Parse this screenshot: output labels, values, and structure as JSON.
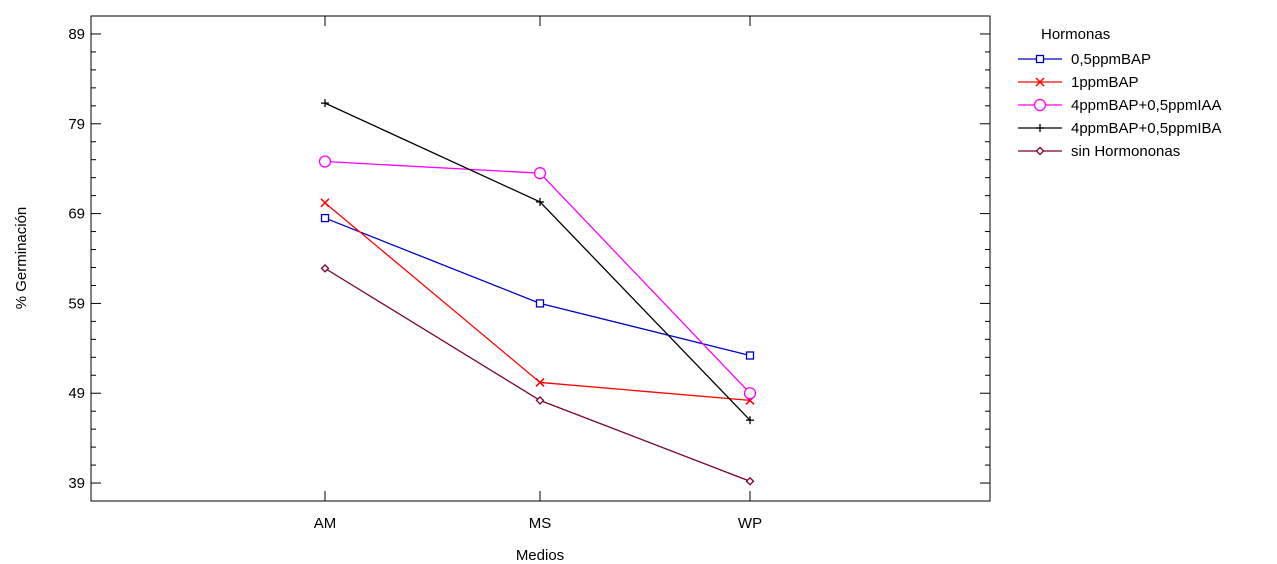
{
  "chart_data": {
    "type": "line",
    "title": "",
    "xlabel": "Medios",
    "ylabel": "% Germinación",
    "categories": [
      "AM",
      "MS",
      "WP"
    ],
    "ylim": [
      37,
      91
    ],
    "yticks": [
      39,
      49,
      59,
      69,
      79,
      89
    ],
    "grid": false,
    "legend": {
      "title": "Hormonas",
      "position": "right"
    },
    "series": [
      {
        "name": "0,5ppmBAP",
        "values": [
          68.5,
          59.0,
          53.2
        ],
        "color": "#0000cc",
        "marker": "square"
      },
      {
        "name": "1ppmBAP",
        "values": [
          70.2,
          50.2,
          48.2
        ],
        "color": "#ff0000",
        "marker": "x"
      },
      {
        "name": "4ppmBAP+0,5ppmIAA",
        "values": [
          74.8,
          73.5,
          49.0
        ],
        "color": "#ff00ff",
        "marker": "circle"
      },
      {
        "name": "4ppmBAP+0,5ppmIBA",
        "values": [
          81.3,
          70.3,
          46.0
        ],
        "color": "#000000",
        "marker": "plus"
      },
      {
        "name": "sin Hormononas",
        "values": [
          62.9,
          48.2,
          39.2
        ],
        "color": "#7a0030",
        "marker": "diamond"
      }
    ]
  }
}
